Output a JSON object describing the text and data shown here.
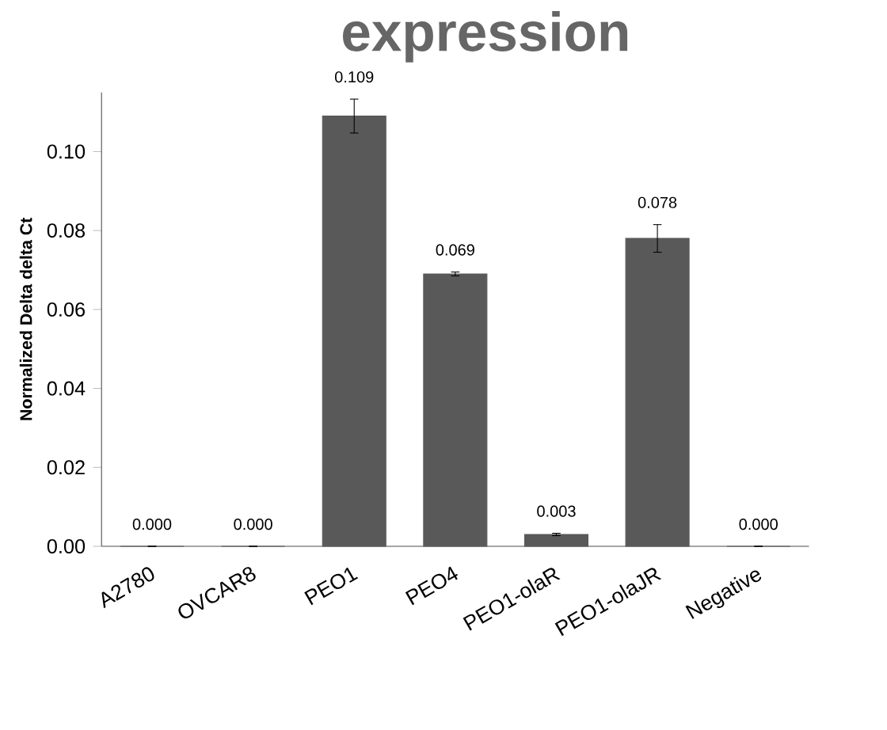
{
  "chart_data": {
    "type": "bar",
    "title": "expression",
    "ylabel": "Normalized Delta delta Ct",
    "categories": [
      "A2780",
      "OVCAR8",
      "PEO1",
      "PEO4",
      "PEO1-olaR",
      "PEO1-olaJR",
      "Negative"
    ],
    "values": [
      0.0,
      0.0,
      0.109,
      0.069,
      0.003,
      0.078,
      0.0
    ],
    "errors": [
      null,
      null,
      0.0043,
      0.0005,
      0.0003,
      0.0035,
      null
    ],
    "value_labels": [
      "0.000",
      "0.000",
      "0.109",
      "0.069",
      "0.003",
      "0.078",
      "0.000"
    ],
    "color": "#595959",
    "ylim": [
      0,
      0.115
    ],
    "yticks": [
      {
        "value": 0,
        "label": "0.00"
      },
      {
        "value": 0.02,
        "label": "0.02"
      },
      {
        "value": 0.04,
        "label": "0.04"
      },
      {
        "value": 0.06,
        "label": "0.06"
      },
      {
        "value": 0.08,
        "label": "0.08"
      },
      {
        "value": 0.1,
        "label": "0.10"
      }
    ]
  }
}
